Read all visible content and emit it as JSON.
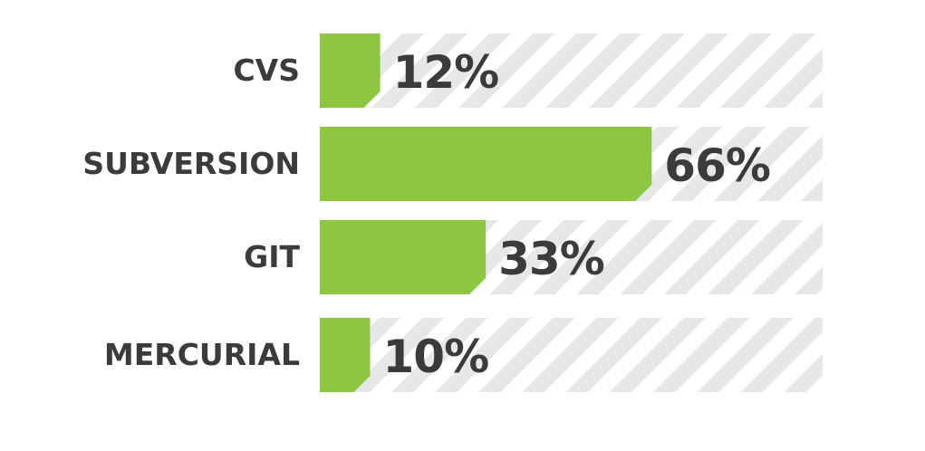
{
  "chart_data": {
    "type": "bar",
    "orientation": "horizontal",
    "categories": [
      "CVS",
      "SUBVERSION",
      "GIT",
      "MERCURIAL"
    ],
    "values": [
      12,
      66,
      33,
      10
    ],
    "value_labels": [
      "12%",
      "66%",
      "33%",
      "10%"
    ],
    "unit": "%",
    "xlim": [
      0,
      100
    ],
    "title": "",
    "xlabel": "",
    "ylabel": "",
    "grid": false,
    "legend": "none",
    "colors": {
      "bar": "#8dc63f",
      "track_stripe": "#e6e7e8",
      "track_background": "#ffffff",
      "text": "#3a3b3d"
    }
  }
}
